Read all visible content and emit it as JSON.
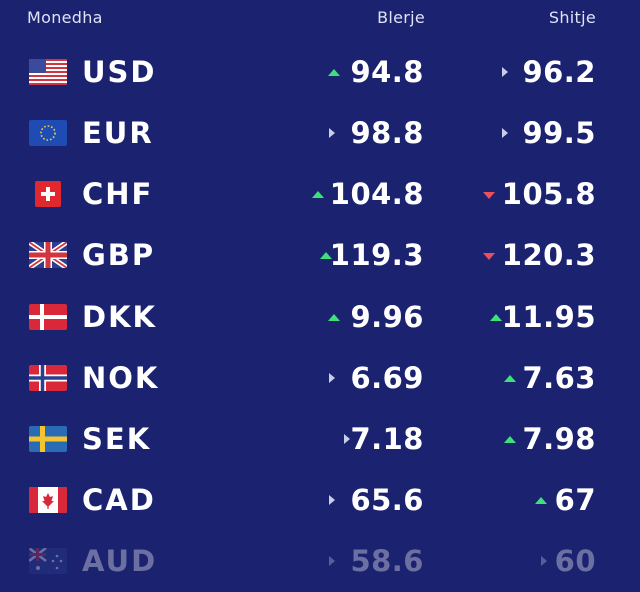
{
  "header": {
    "currency": "Monedha",
    "buy": "Blerje",
    "sell": "Shitje"
  },
  "colors": {
    "background": "#1b2270",
    "up": "#3ee07a",
    "down": "#e8505b",
    "flat": "#c9cde6"
  },
  "rows": [
    {
      "code": "USD",
      "flag": "usa-flag-icon",
      "buy": "94.8",
      "buy_trend": "up",
      "sell": "96.2",
      "sell_trend": "flat"
    },
    {
      "code": "EUR",
      "flag": "eu-flag-icon",
      "buy": "98.8",
      "buy_trend": "flat",
      "sell": "99.5",
      "sell_trend": "flat"
    },
    {
      "code": "CHF",
      "flag": "swiss-flag-icon",
      "buy": "104.8",
      "buy_trend": "up",
      "sell": "105.8",
      "sell_trend": "down"
    },
    {
      "code": "GBP",
      "flag": "uk-flag-icon",
      "buy": "119.3",
      "buy_trend": "up",
      "sell": "120.3",
      "sell_trend": "down"
    },
    {
      "code": "DKK",
      "flag": "denmark-flag-icon",
      "buy": "9.96",
      "buy_trend": "up",
      "sell": "11.95",
      "sell_trend": "up"
    },
    {
      "code": "NOK",
      "flag": "norway-flag-icon",
      "buy": "6.69",
      "buy_trend": "flat",
      "sell": "7.63",
      "sell_trend": "up"
    },
    {
      "code": "SEK",
      "flag": "sweden-flag-icon",
      "buy": "7.18",
      "buy_trend": "flat",
      "sell": "7.98",
      "sell_trend": "up"
    },
    {
      "code": "CAD",
      "flag": "canada-flag-icon",
      "buy": "65.6",
      "buy_trend": "flat",
      "sell": "67",
      "sell_trend": "up"
    },
    {
      "code": "AUD",
      "flag": "australia-flag-icon",
      "buy": "58.6",
      "buy_trend": "flat",
      "sell": "60",
      "sell_trend": "flat"
    }
  ]
}
